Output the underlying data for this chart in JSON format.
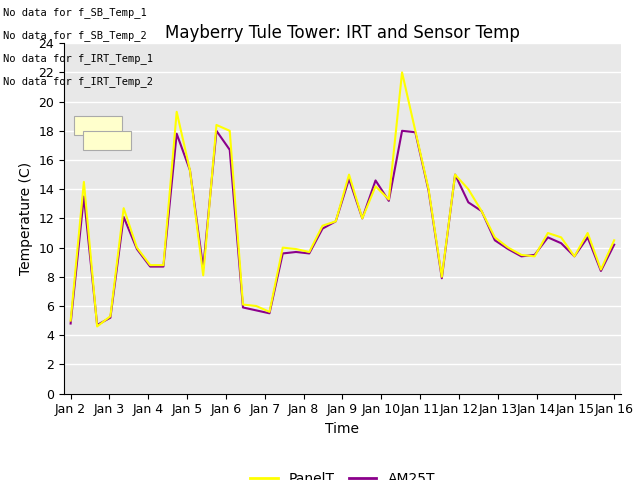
{
  "title": "Mayberry Tule Tower: IRT and Sensor Temp",
  "xlabel": "Time",
  "ylabel": "Temperature (C)",
  "ylim": [
    0,
    24
  ],
  "yticks": [
    0,
    2,
    4,
    6,
    8,
    10,
    12,
    14,
    16,
    18,
    20,
    22,
    24
  ],
  "xtick_labels": [
    "Jan 2",
    "Jan 3",
    "Jan 4",
    "Jan 5",
    "Jan 6",
    "Jan 7",
    "Jan 8",
    "Jan 9",
    "Jan 10",
    "Jan 11",
    "Jan 12",
    "Jan 13",
    "Jan 14",
    "Jan 15",
    "Jan 16"
  ],
  "panel_t": [
    5.0,
    14.5,
    4.6,
    5.3,
    12.7,
    10.0,
    8.8,
    8.8,
    19.3,
    15.3,
    8.1,
    18.4,
    18.0,
    6.1,
    6.0,
    5.6,
    10.0,
    9.9,
    9.7,
    11.5,
    11.8,
    15.0,
    12.0,
    14.2,
    13.3,
    22.0,
    18.0,
    14.0,
    8.0,
    15.0,
    14.0,
    12.5,
    10.7,
    10.0,
    9.5,
    9.4,
    11.0,
    10.7,
    9.4,
    11.0,
    8.5,
    10.5
  ],
  "am25_t": [
    4.8,
    13.5,
    4.7,
    5.2,
    12.1,
    9.9,
    8.7,
    8.7,
    17.8,
    15.3,
    8.6,
    18.0,
    16.7,
    5.9,
    5.7,
    5.5,
    9.6,
    9.7,
    9.6,
    11.3,
    11.8,
    14.7,
    12.0,
    14.6,
    13.2,
    18.0,
    17.9,
    13.9,
    7.9,
    15.0,
    13.1,
    12.5,
    10.5,
    9.9,
    9.4,
    9.5,
    10.7,
    10.3,
    9.4,
    10.7,
    8.4,
    10.2
  ],
  "panel_color": "yellow",
  "am25_color": "#8B008B",
  "no_data_messages": [
    "No data for f_SB_Temp_1",
    "No data for f_SB_Temp_2",
    "No data for f_IRT_Temp_1",
    "No data for f_IRT_Temp_2"
  ],
  "legend_labels": [
    "PanelT",
    "AM25T"
  ],
  "background_color": "#e8e8e8",
  "grid_color": "white",
  "title_fontsize": 12,
  "axis_fontsize": 10,
  "tick_fontsize": 9
}
